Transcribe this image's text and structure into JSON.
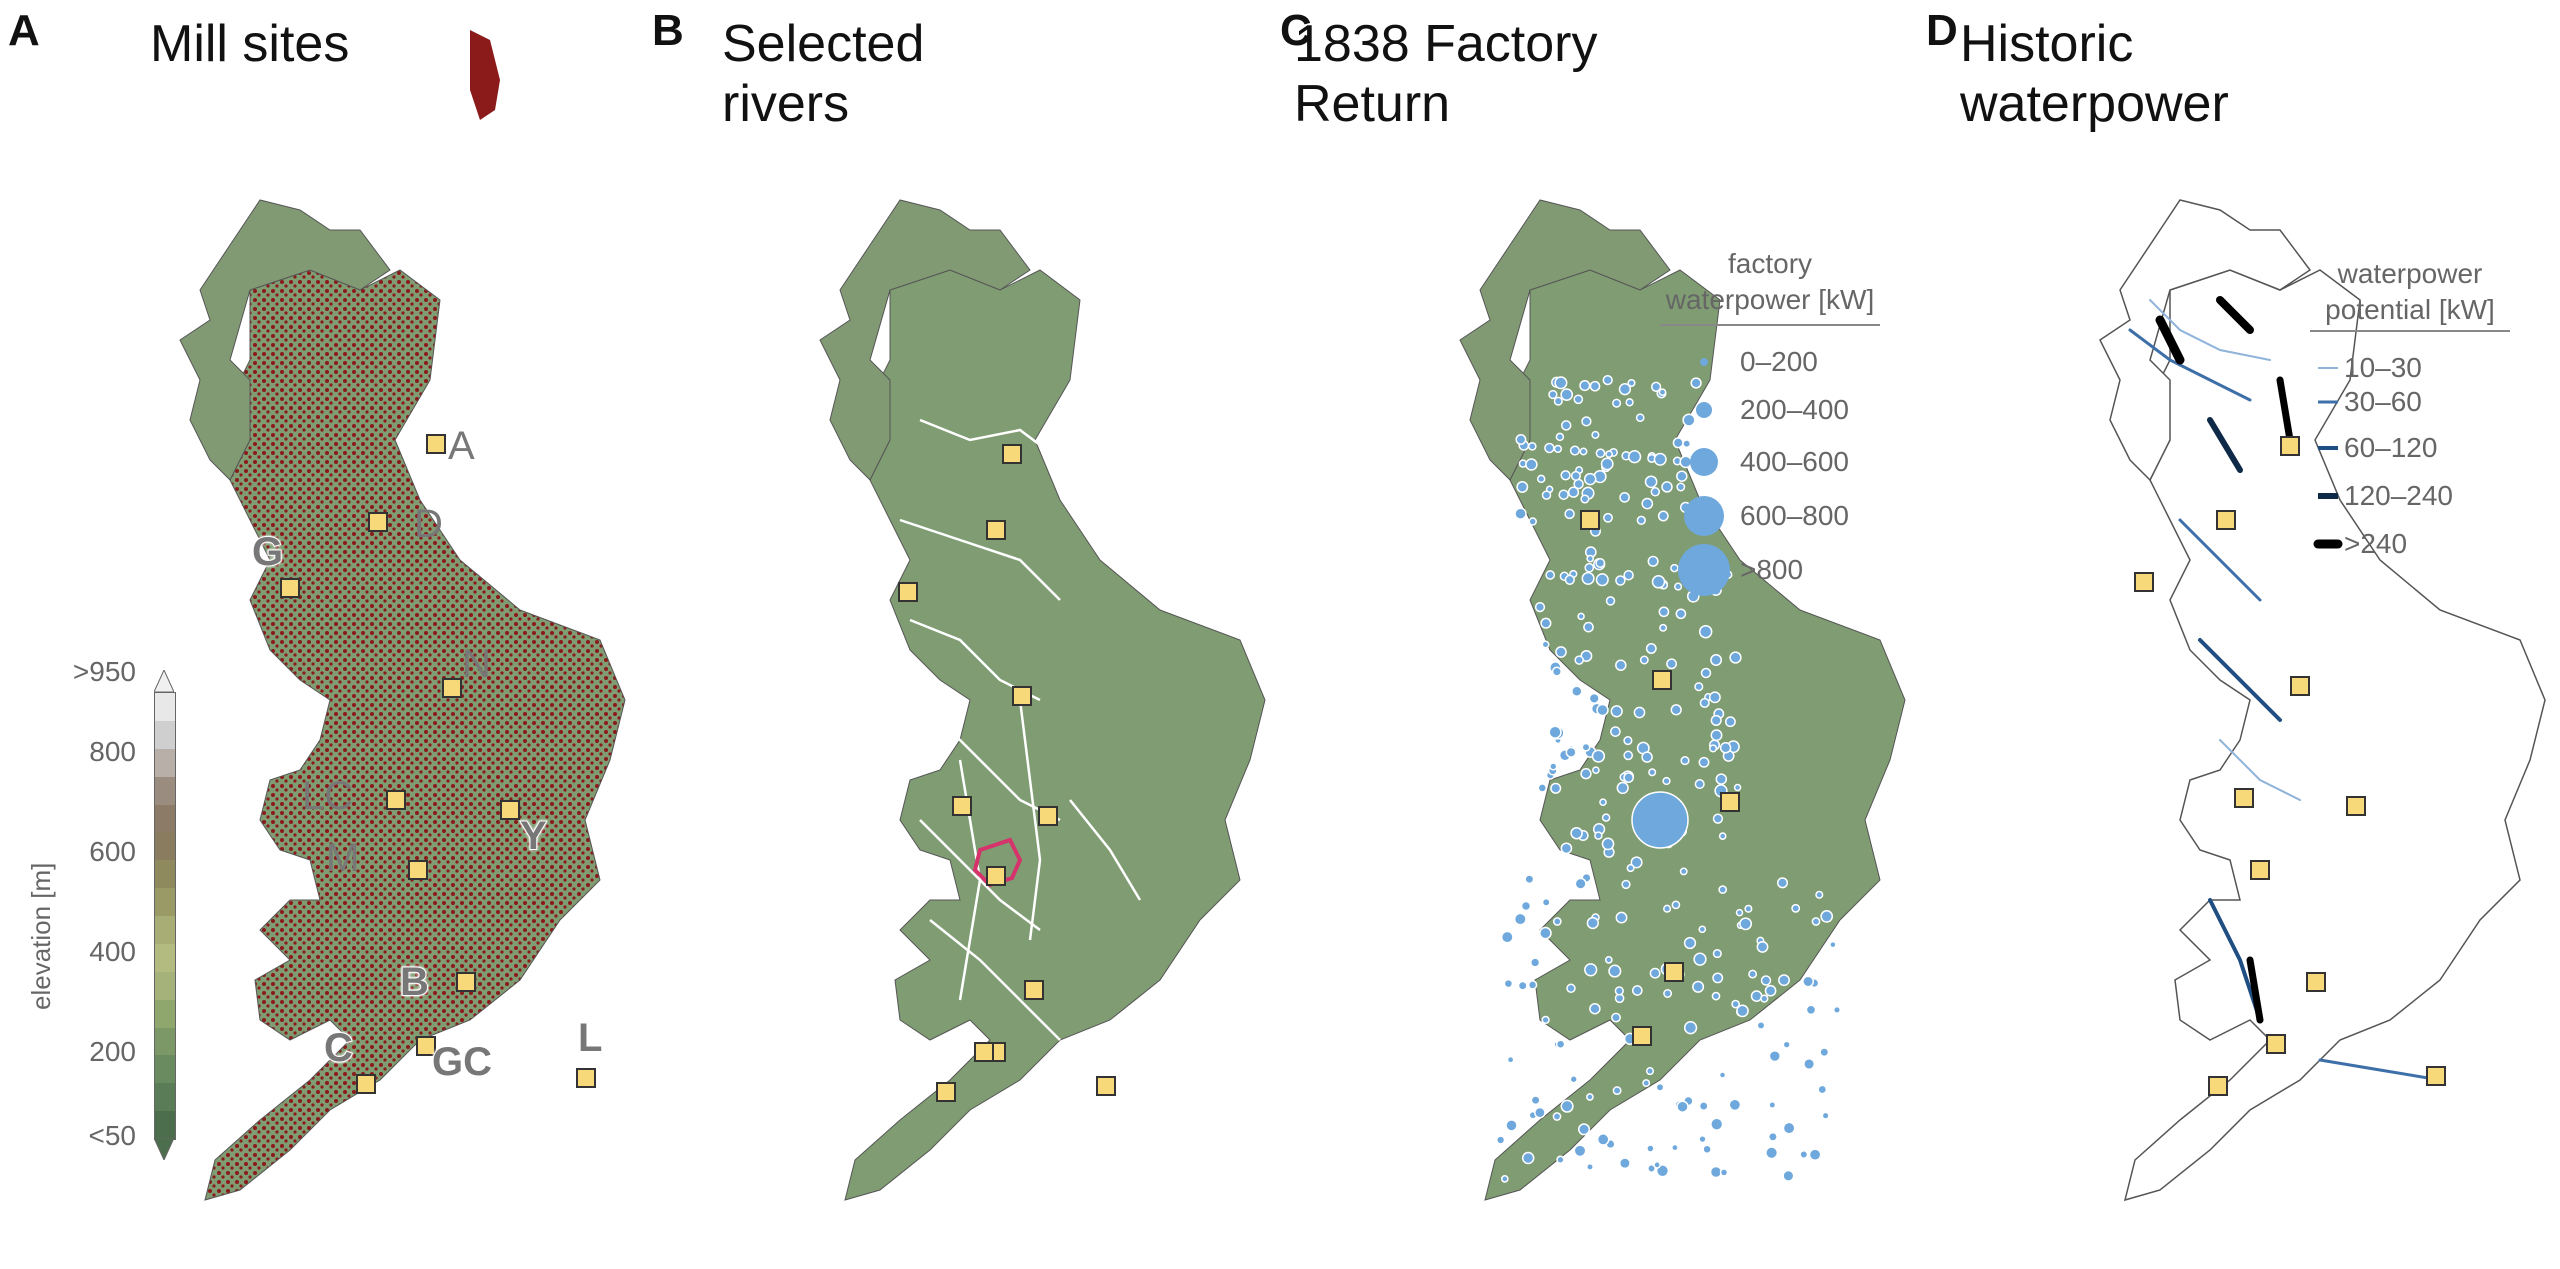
{
  "panels": [
    {
      "letter": "A",
      "title": "Mill sites"
    },
    {
      "letter": "B",
      "title": "Selected\nrivers"
    },
    {
      "letter": "C",
      "title": "1838 Factory\nReturn"
    },
    {
      "letter": "D",
      "title": "Historic\nwaterpower"
    }
  ],
  "site_labels": [
    "A",
    "D",
    "G",
    "N",
    "LC",
    "Y",
    "M",
    "B",
    "C",
    "GC",
    "L"
  ],
  "colorbar": {
    "axis_label": "elevation [m]",
    "ticks": [
      ">950",
      "800",
      "600",
      "400",
      "200",
      "<50"
    ],
    "colors": [
      "#e8e8e8",
      "#cfcfcf",
      "#b8b0a8",
      "#9a8c7e",
      "#8c7b66",
      "#8a7d5f",
      "#8f8a5e",
      "#9a9a66",
      "#a7ad74",
      "#b3bb80",
      "#a5b279",
      "#8fa66c",
      "#7c9866",
      "#6a8a60",
      "#5a7c56",
      "#4d6e4d"
    ]
  },
  "legend_c": {
    "title": "factory\nwaterpower [kW]",
    "items": [
      "0–200",
      "200–400",
      "400–600",
      "600–800",
      ">800"
    ],
    "color": "#6fa8dc"
  },
  "legend_d": {
    "title": "waterpower\npotential [kW]",
    "items": [
      "10–30",
      "30–60",
      "60–120",
      "120–240",
      ">240"
    ],
    "colors": [
      "#8fb3d9",
      "#3d6fa8",
      "#1f4f82",
      "#0f2a48",
      "#000000"
    ]
  },
  "colors": {
    "land": "#7f9c72",
    "mill_dots": "#8b1a1a",
    "rivers": "#ffffff",
    "marker_fill": "#f8d97a",
    "highlight": "#d6336c"
  }
}
